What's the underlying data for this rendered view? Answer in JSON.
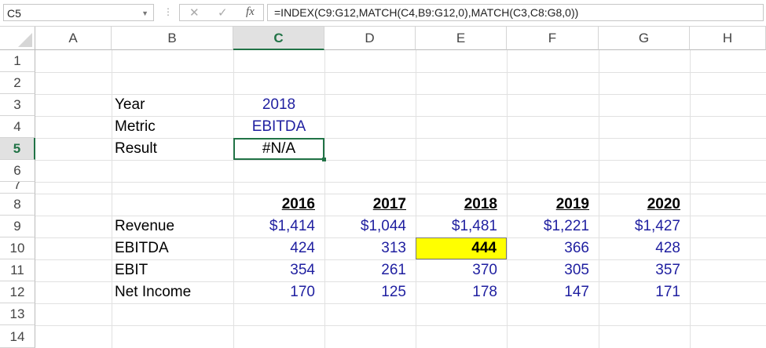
{
  "formula_bar": {
    "name_box": "C5",
    "formula": "=INDEX(C9:G12,MATCH(C4,B9:G12,0),MATCH(C3,C8:G8,0))",
    "cancel_icon": "✕",
    "enter_icon": "✓",
    "fx_icon": "fx"
  },
  "columns": [
    "A",
    "B",
    "C",
    "D",
    "E",
    "F",
    "G",
    "H"
  ],
  "rows": [
    "1",
    "2",
    "3",
    "4",
    "5",
    "6",
    "7",
    "8",
    "9",
    "10",
    "11",
    "12",
    "13",
    "14"
  ],
  "lookup": {
    "year_label": "Year",
    "year_value": "2018",
    "metric_label": "Metric",
    "metric_value": "EBITDA",
    "result_label": "Result",
    "result_value": "#N/A"
  },
  "table": {
    "years": [
      "2016",
      "2017",
      "2018",
      "2019",
      "2020"
    ],
    "rows": [
      {
        "label": "Revenue",
        "values": [
          "$1,414",
          "$1,044",
          "$1,481",
          "$1,221",
          "$1,427"
        ]
      },
      {
        "label": "EBITDA",
        "values": [
          "424",
          "313",
          "444",
          "366",
          "428"
        ]
      },
      {
        "label": "EBIT",
        "values": [
          "354",
          "261",
          "370",
          "305",
          "357"
        ]
      },
      {
        "label": "Net Income",
        "values": [
          "170",
          "125",
          "178",
          "147",
          "171"
        ]
      }
    ]
  },
  "colors": {
    "input_blue": "#1f1fa0",
    "highlight": "#ffff00",
    "selection": "#217346"
  }
}
